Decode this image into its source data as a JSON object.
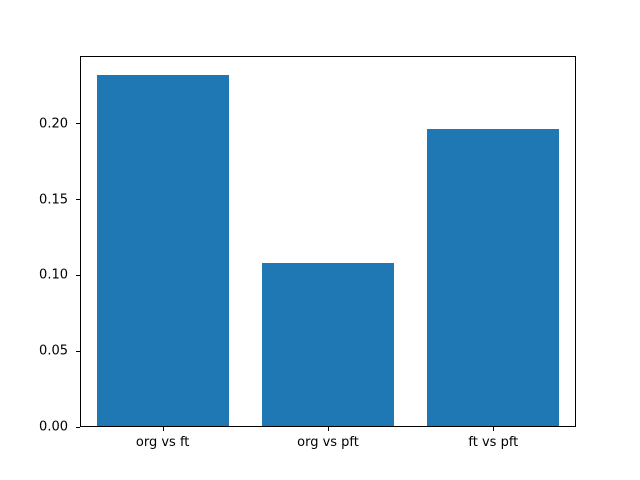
{
  "chart_data": {
    "type": "bar",
    "categories": [
      "org vs ft",
      "org vs pft",
      "ft vs pft"
    ],
    "values": [
      0.233,
      0.108,
      0.197
    ],
    "title": "",
    "xlabel": "",
    "ylabel": "",
    "ylim": [
      0,
      0.2447
    ],
    "yticks": [
      0.0,
      0.05,
      0.1,
      0.15,
      0.2
    ],
    "ytick_labels": [
      "0.00",
      "0.05",
      "0.10",
      "0.15",
      "0.20"
    ],
    "bar_color": "#1f77b4",
    "bar_width_fraction": 0.8,
    "grid": false,
    "legend": false,
    "background_color": "#ffffff",
    "axis_color": "#000000"
  }
}
